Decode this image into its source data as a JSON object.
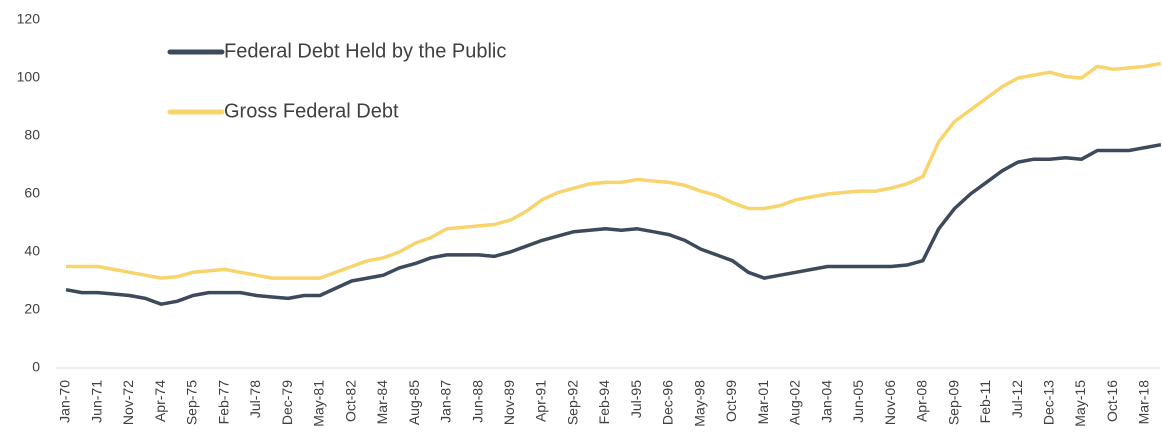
{
  "chart_data": {
    "type": "line",
    "categories": [
      "Jan-70",
      null,
      "Jun-71",
      null,
      "Nov-72",
      null,
      "Apr-74",
      null,
      "Sep-75",
      null,
      "Feb-77",
      null,
      "Jul-78",
      null,
      "Dec-79",
      null,
      "May-81",
      null,
      "Oct-82",
      null,
      "Mar-84",
      null,
      "Aug-85",
      null,
      "Jan-87",
      null,
      "Jun-88",
      null,
      "Nov-89",
      null,
      "Apr-91",
      null,
      "Sep-92",
      null,
      "Feb-94",
      null,
      "Jul-95",
      null,
      "Dec-96",
      null,
      "May-98",
      null,
      "Oct-99",
      null,
      "Mar-01",
      null,
      "Aug-02",
      null,
      "Jan-04",
      null,
      "Jun-05",
      null,
      "Nov-06",
      null,
      "Apr-08",
      null,
      "Sep-09",
      null,
      "Feb-11",
      null,
      "Jul-12",
      null,
      "Dec-13",
      null,
      "May-15",
      null,
      "Oct-16",
      null,
      "Mar-18",
      null
    ],
    "series": [
      {
        "name": "Federal Debt Held by the Public",
        "color": "#3c4a5b",
        "values": [
          27,
          26,
          26,
          25.5,
          25,
          24,
          22,
          23,
          25,
          26,
          26,
          26,
          25,
          24.5,
          24,
          25,
          25,
          27.5,
          30,
          31,
          32,
          34.5,
          36,
          38,
          39,
          39,
          39,
          38.5,
          40,
          42,
          44,
          45.5,
          47,
          47.5,
          48,
          47.5,
          48,
          47,
          46,
          44,
          41,
          39,
          37,
          33,
          31,
          32,
          33,
          34,
          35,
          35,
          35,
          35,
          35,
          35.5,
          37,
          48,
          55,
          60,
          64,
          68,
          71,
          72,
          72,
          72.5,
          72,
          75,
          75,
          75,
          76,
          77
        ]
      },
      {
        "name": "Gross Federal Debt",
        "color": "#f8d46c",
        "values": [
          35,
          35,
          35,
          34,
          33,
          32,
          31,
          31.5,
          33,
          33.5,
          34,
          33,
          32,
          31,
          31,
          31,
          31,
          33,
          35,
          37,
          38,
          40,
          43,
          45,
          48,
          48.5,
          49,
          49.5,
          51,
          54,
          58,
          60.5,
          62,
          63.5,
          64,
          64,
          65,
          64.5,
          64,
          63,
          61,
          59.5,
          57,
          55,
          55,
          56,
          58,
          59,
          60,
          60.5,
          61,
          61,
          62,
          63.5,
          66,
          78,
          85,
          89,
          93,
          97,
          100,
          101,
          102,
          100.5,
          100,
          104,
          103,
          103.5,
          104,
          105
        ]
      }
    ],
    "ylim": [
      0,
      120
    ],
    "yticks": [
      0,
      20,
      40,
      60,
      80,
      100,
      120
    ],
    "legend": "top-left",
    "grid": false
  }
}
